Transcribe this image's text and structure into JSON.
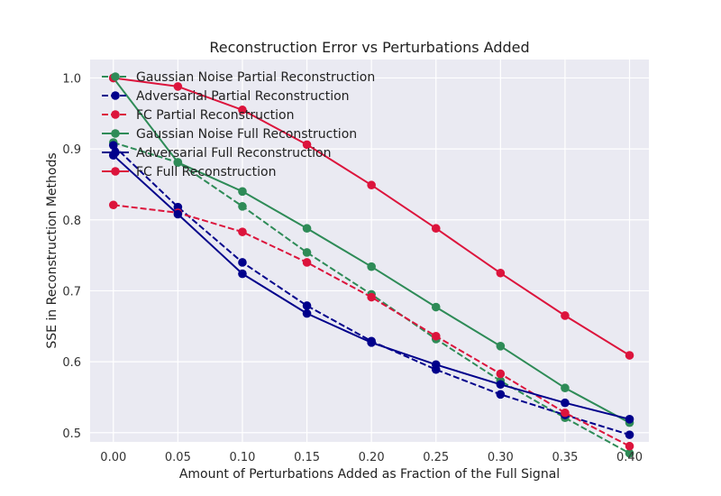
{
  "chart_data": {
    "type": "line",
    "title": "Reconstruction Error vs Perturbations Added",
    "xlabel": "Amount of Perturbations Added as Fraction of the Full Signal",
    "ylabel": "SSE in Reconstruction Methods",
    "xlim": [
      -0.018,
      0.415
    ],
    "ylim": [
      0.487,
      1.026
    ],
    "xticks": [
      0.0,
      0.05,
      0.1,
      0.15,
      0.2,
      0.25,
      0.3,
      0.35,
      0.4
    ],
    "xtick_labels": [
      "0.00",
      "0.05",
      "0.10",
      "0.15",
      "0.20",
      "0.25",
      "0.30",
      "0.35",
      "0.40"
    ],
    "yticks": [
      0.5,
      0.6,
      0.7,
      0.8,
      0.9,
      1.0
    ],
    "ytick_labels": [
      "0.5",
      "0.6",
      "0.7",
      "0.8",
      "0.9",
      "1.0"
    ],
    "grid": true,
    "legend_position": "top-left",
    "x": [
      0.0,
      0.05,
      0.1,
      0.15,
      0.2,
      0.25,
      0.3,
      0.35,
      0.4
    ],
    "series": [
      {
        "name": "Gaussian Noise Partial Reconstruction",
        "color": "#2e8b57",
        "dash": "dashed",
        "values": [
          0.909,
          0.881,
          0.819,
          0.754,
          0.695,
          0.632,
          0.573,
          0.521,
          0.471
        ]
      },
      {
        "name": "Adversarial Partial Reconstruction",
        "color": "#00008b",
        "dash": "dashed",
        "values": [
          0.905,
          0.818,
          0.74,
          0.679,
          0.629,
          0.589,
          0.554,
          0.525,
          0.497
        ]
      },
      {
        "name": "FC Partial Reconstruction",
        "color": "#dc143c",
        "dash": "dashed",
        "values": [
          0.821,
          0.81,
          0.783,
          0.74,
          0.691,
          0.636,
          0.583,
          0.528,
          0.481
        ]
      },
      {
        "name": "Gaussian Noise Full Reconstruction",
        "color": "#2e8b57",
        "dash": "solid",
        "values": [
          1.0,
          0.881,
          0.84,
          0.788,
          0.734,
          0.677,
          0.622,
          0.563,
          0.514
        ]
      },
      {
        "name": "Adversarial Full Reconstruction",
        "color": "#00008b",
        "dash": "solid",
        "values": [
          0.891,
          0.808,
          0.724,
          0.668,
          0.627,
          0.596,
          0.568,
          0.542,
          0.519
        ]
      },
      {
        "name": "FC Full Reconstruction",
        "color": "#dc143c",
        "dash": "solid",
        "values": [
          1.0,
          0.988,
          0.955,
          0.906,
          0.849,
          0.788,
          0.725,
          0.665,
          0.609
        ]
      }
    ]
  }
}
